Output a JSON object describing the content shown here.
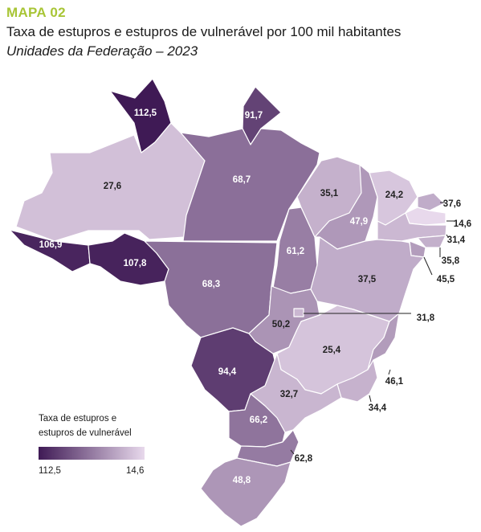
{
  "header": {
    "kicker": "MAPA 02",
    "title": "Taxa de estupros e estupros de vulnerável por 100 mil habitantes",
    "subtitle": "Unidades da Federação – 2023"
  },
  "colors": {
    "kicker": "#a8c536",
    "scale_dark": "#3f1a55",
    "scale_light": "#e8d9ec"
  },
  "legend": {
    "title_line1": "Taxa de estupros e",
    "title_line2": "estupros de vulnerável",
    "max": "112,5",
    "min": "14,6"
  },
  "states": [
    {
      "id": "RR",
      "value": 112.5,
      "label": "112,5"
    },
    {
      "id": "AP",
      "value": 91.7,
      "label": "91,7"
    },
    {
      "id": "AM",
      "value": 27.6,
      "label": "27,6"
    },
    {
      "id": "PA",
      "value": 68.7,
      "label": "68,7"
    },
    {
      "id": "AC",
      "value": 106.9,
      "label": "106,9"
    },
    {
      "id": "RO",
      "value": 107.8,
      "label": "107,8"
    },
    {
      "id": "MT",
      "value": 68.3,
      "label": "68,3"
    },
    {
      "id": "TO",
      "value": 61.2,
      "label": "61,2"
    },
    {
      "id": "MA",
      "value": 35.1,
      "label": "35,1"
    },
    {
      "id": "PI",
      "value": 47.9,
      "label": "47,9"
    },
    {
      "id": "CE",
      "value": 24.2,
      "label": "24,2"
    },
    {
      "id": "RN",
      "value": 37.6,
      "label": "37,6"
    },
    {
      "id": "PB",
      "value": 14.6,
      "label": "14,6"
    },
    {
      "id": "PE",
      "value": 31.4,
      "label": "31,4"
    },
    {
      "id": "AL",
      "value": 35.8,
      "label": "35,8"
    },
    {
      "id": "SE",
      "value": 45.5,
      "label": "45,5"
    },
    {
      "id": "BA",
      "value": 37.5,
      "label": "37,5"
    },
    {
      "id": "GO",
      "value": 50.2,
      "label": "50,2"
    },
    {
      "id": "DF",
      "value": 31.8,
      "label": "31,8"
    },
    {
      "id": "MG",
      "value": 25.4,
      "label": "25,4"
    },
    {
      "id": "MS",
      "value": 94.4,
      "label": "94,4"
    },
    {
      "id": "ES",
      "value": 46.1,
      "label": "46,1"
    },
    {
      "id": "RJ",
      "value": 34.4,
      "label": "34,4"
    },
    {
      "id": "SP",
      "value": 32.7,
      "label": "32,7"
    },
    {
      "id": "PR",
      "value": 66.2,
      "label": "66,2"
    },
    {
      "id": "SC",
      "value": 62.8,
      "label": "62,8"
    },
    {
      "id": "RS",
      "value": 48.8,
      "label": "48,8"
    }
  ]
}
